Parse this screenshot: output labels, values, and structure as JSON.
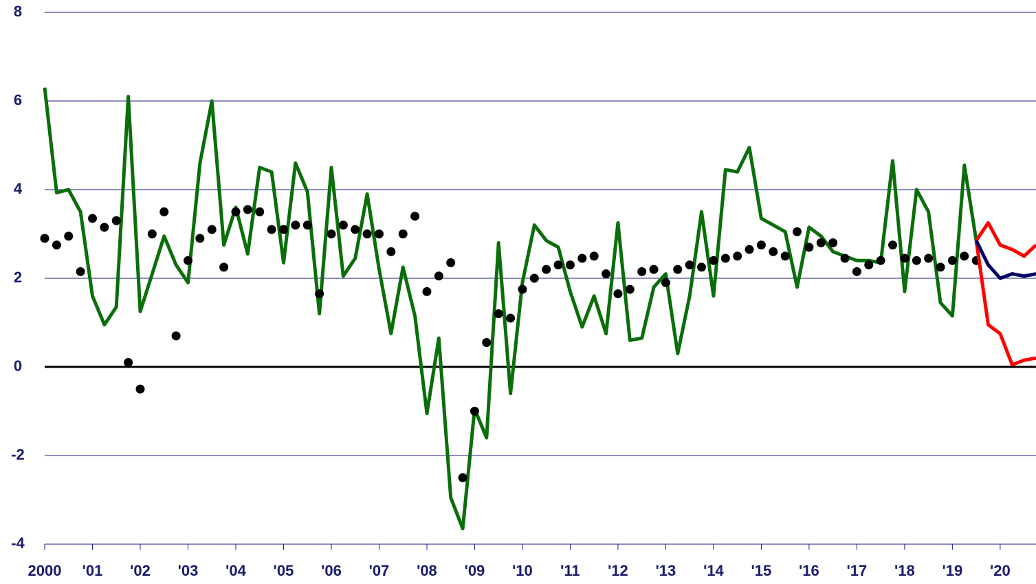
{
  "chart_data": {
    "type": "line",
    "x": [
      2000,
      2000.25,
      2000.5,
      2000.75,
      2001,
      2001.25,
      2001.5,
      2001.75,
      2002,
      2002.25,
      2002.5,
      2002.75,
      2003,
      2003.25,
      2003.5,
      2003.75,
      2004,
      2004.25,
      2004.5,
      2004.75,
      2005,
      2005.25,
      2005.5,
      2005.75,
      2006,
      2006.25,
      2006.5,
      2006.75,
      2007,
      2007.25,
      2007.5,
      2007.75,
      2008,
      2008.25,
      2008.5,
      2008.75,
      2009,
      2009.25,
      2009.5,
      2009.75,
      2010,
      2010.25,
      2010.5,
      2010.75,
      2011,
      2011.25,
      2011.5,
      2011.75,
      2012,
      2012.25,
      2012.5,
      2012.75,
      2013,
      2013.25,
      2013.5,
      2013.75,
      2014,
      2014.25,
      2014.5,
      2014.75,
      2015,
      2015.25,
      2015.5,
      2015.75,
      2016,
      2016.25,
      2016.5,
      2016.75,
      2017,
      2017.25,
      2017.5,
      2017.75,
      2018,
      2018.25,
      2018.5,
      2018.75,
      2019,
      2019.25,
      2019.5
    ],
    "series": [
      {
        "mark": "line",
        "color": "#0a6e0a",
        "values": [
          6.3,
          3.93,
          4.0,
          3.5,
          1.6,
          0.95,
          1.35,
          6.1,
          1.25,
          2.1,
          2.95,
          2.3,
          1.9,
          4.6,
          6.0,
          2.75,
          3.6,
          2.55,
          4.5,
          4.4,
          2.35,
          4.6,
          3.95,
          1.2,
          4.5,
          2.05,
          2.45,
          3.9,
          2.2,
          0.75,
          2.25,
          1.15,
          -1.05,
          0.65,
          -2.95,
          -3.65,
          -0.95,
          -1.6,
          2.8,
          -0.6,
          1.9,
          3.2,
          2.85,
          2.7,
          1.7,
          0.9,
          1.6,
          0.75,
          3.25,
          0.6,
          0.65,
          1.8,
          2.1,
          0.3,
          1.6,
          3.5,
          1.6,
          4.45,
          4.4,
          4.95,
          3.35,
          3.2,
          3.05,
          1.8,
          3.15,
          2.95,
          2.6,
          2.5,
          2.4,
          2.4,
          2.35,
          4.65,
          1.7,
          4.0,
          3.5,
          1.45,
          1.15,
          4.55,
          2.85
        ]
      },
      {
        "mark": "point",
        "color": "#000000",
        "values": [
          2.9,
          2.75,
          2.95,
          2.15,
          3.35,
          3.15,
          3.3,
          0.1,
          -0.5,
          3.0,
          3.5,
          0.7,
          2.4,
          2.9,
          3.1,
          2.25,
          3.5,
          3.55,
          3.5,
          3.1,
          3.1,
          3.2,
          3.2,
          1.65,
          3.0,
          3.2,
          3.1,
          3.0,
          3.0,
          2.6,
          3.0,
          3.4,
          1.7,
          2.05,
          2.35,
          -2.5,
          -1.0,
          0.55,
          1.2,
          1.1,
          1.75,
          2.0,
          2.2,
          2.3,
          2.3,
          2.45,
          2.5,
          2.1,
          1.65,
          1.75,
          2.15,
          2.2,
          1.9,
          2.2,
          2.3,
          2.25,
          2.4,
          2.45,
          2.5,
          2.65,
          2.75,
          2.6,
          2.5,
          3.05,
          2.7,
          2.8,
          2.8,
          2.45,
          2.15,
          2.3,
          2.4,
          2.75,
          2.45,
          2.4,
          2.45,
          2.25,
          2.4,
          2.5,
          2.4
        ]
      },
      {
        "mark": "line",
        "color": "#ff0000",
        "x": [
          2019.5,
          2019.75,
          2020,
          2020.25,
          2020.5,
          2020.75
        ],
        "values": [
          2.85,
          3.25,
          2.75,
          2.65,
          2.5,
          2.75
        ]
      },
      {
        "mark": "line",
        "color": "#ff0000",
        "x": [
          2019.5,
          2019.75,
          2020,
          2020.25,
          2020.5,
          2020.75
        ],
        "values": [
          2.85,
          0.95,
          0.75,
          0.05,
          0.15,
          0.2
        ]
      },
      {
        "mark": "line",
        "color": "#000066",
        "x": [
          2019.5,
          2019.75,
          2020,
          2020.25,
          2020.5,
          2020.75
        ],
        "values": [
          2.85,
          2.3,
          2.0,
          2.1,
          2.05,
          2.1
        ]
      }
    ],
    "xlim": [
      2000,
      2020.75
    ],
    "xticks": [
      {
        "value": 2000,
        "label": "2000"
      },
      {
        "value": 2001,
        "label": "'01"
      },
      {
        "value": 2002,
        "label": "'02"
      },
      {
        "value": 2003,
        "label": "'03"
      },
      {
        "value": 2004,
        "label": "'04"
      },
      {
        "value": 2005,
        "label": "'05"
      },
      {
        "value": 2006,
        "label": "'06"
      },
      {
        "value": 2007,
        "label": "'07"
      },
      {
        "value": 2008,
        "label": "'08"
      },
      {
        "value": 2009,
        "label": "'09"
      },
      {
        "value": 2010,
        "label": "'10"
      },
      {
        "value": 2011,
        "label": "'11"
      },
      {
        "value": 2012,
        "label": "'12"
      },
      {
        "value": 2013,
        "label": "'13"
      },
      {
        "value": 2014,
        "label": "'14"
      },
      {
        "value": 2015,
        "label": "'15"
      },
      {
        "value": 2016,
        "label": "'16"
      },
      {
        "value": 2017,
        "label": "'17"
      },
      {
        "value": 2018,
        "label": "'18"
      },
      {
        "value": 2019,
        "label": "'19"
      },
      {
        "value": 2020,
        "label": "'20"
      }
    ],
    "ylim": [
      -4,
      8
    ],
    "yticks": [
      -4,
      -2,
      0,
      2,
      4,
      6,
      8
    ],
    "grid": true,
    "grid_color": "#1a1a8c"
  }
}
